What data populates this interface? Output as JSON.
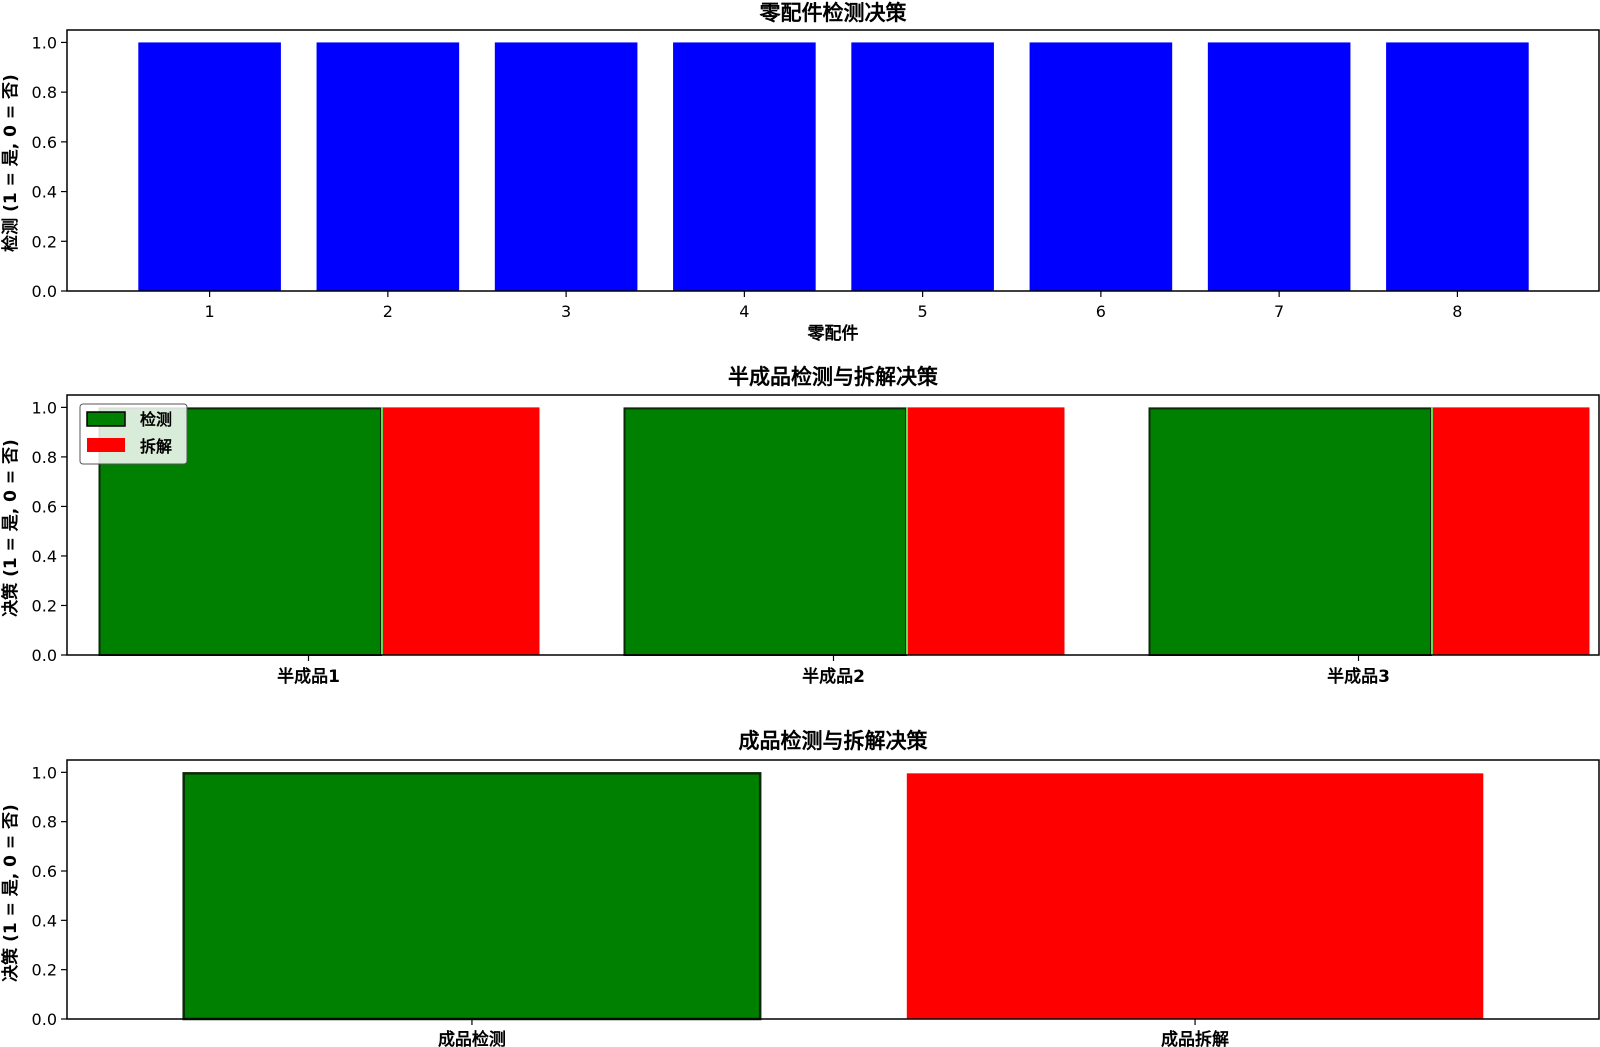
{
  "chart_data": [
    {
      "type": "bar",
      "title": "零配件检测决策",
      "xlabel": "零配件",
      "ylabel": "检测 (1 = 是, 0 = 否)",
      "categories": [
        "1",
        "2",
        "3",
        "4",
        "5",
        "6",
        "7",
        "8"
      ],
      "series": [
        {
          "values": [
            1,
            1,
            1,
            1,
            1,
            1,
            1,
            1
          ],
          "color": "#0000ff"
        }
      ],
      "ylim": [
        0,
        1.05
      ],
      "yticks": [
        "0.0",
        "0.2",
        "0.4",
        "0.6",
        "0.8",
        "1.0"
      ],
      "grid": false
    },
    {
      "type": "bar",
      "title": "半成品检测与拆解决策",
      "xlabel": "",
      "ylabel": "决策 (1 = 是, 0 = 否)",
      "categories": [
        "半成品1",
        "半成品2",
        "半成品3"
      ],
      "series": [
        {
          "name": "检测",
          "values": [
            1,
            1,
            1
          ],
          "color": "#008000"
        },
        {
          "name": "拆解",
          "values": [
            1,
            1,
            1
          ],
          "color": "#ff0000"
        }
      ],
      "ylim": [
        0,
        1.05
      ],
      "yticks": [
        "0.0",
        "0.2",
        "0.4",
        "0.6",
        "0.8",
        "1.0"
      ],
      "legend": "top-left",
      "grid": false
    },
    {
      "type": "bar",
      "title": "成品检测与拆解决策",
      "xlabel": "",
      "ylabel": "决策 (1 = 是, 0 = 否)",
      "categories": [
        "成品检测",
        "成品拆解"
      ],
      "series": [
        {
          "values": [
            1,
            1
          ],
          "colors": [
            "#008000",
            "#ff0000"
          ]
        }
      ],
      "ylim": [
        0,
        1.05
      ],
      "yticks": [
        "0.0",
        "0.2",
        "0.4",
        "0.6",
        "0.8",
        "1.0"
      ],
      "grid": false
    }
  ]
}
